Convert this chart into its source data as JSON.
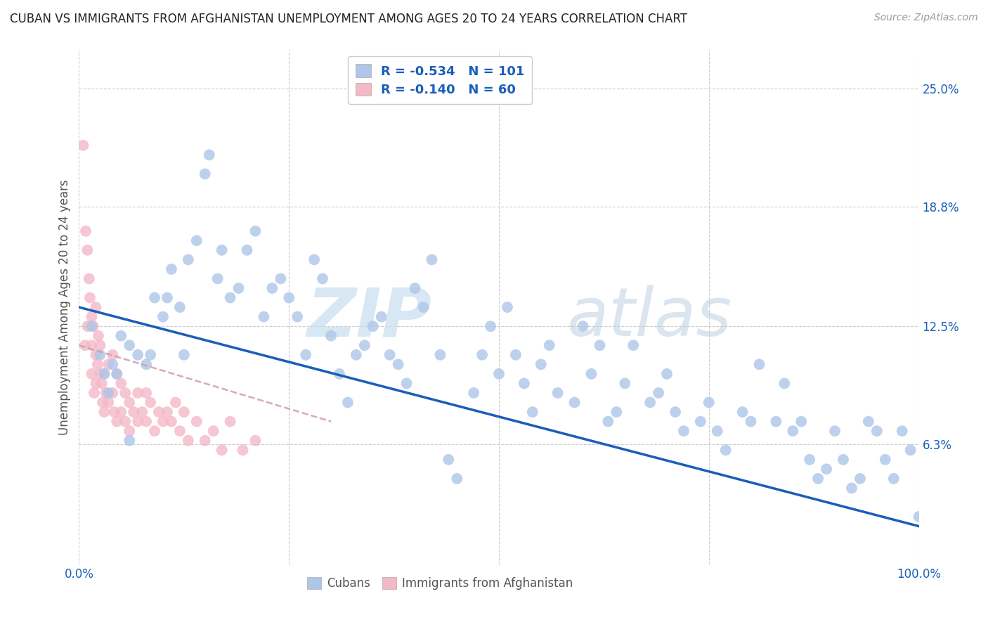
{
  "title": "CUBAN VS IMMIGRANTS FROM AFGHANISTAN UNEMPLOYMENT AMONG AGES 20 TO 24 YEARS CORRELATION CHART",
  "source": "Source: ZipAtlas.com",
  "ylabel": "Unemployment Among Ages 20 to 24 years",
  "ytick_values": [
    6.3,
    12.5,
    18.8,
    25.0
  ],
  "xlim": [
    0,
    100
  ],
  "ylim": [
    0,
    27
  ],
  "color_cubans": "#aec6e8",
  "color_afghanistan": "#f4b8c8",
  "color_line_cubans": "#1a5eb8",
  "color_line_afghanistan": "#d4a0b0",
  "watermark_zip": "ZIP",
  "watermark_atlas": "atlas",
  "cub_line_x": [
    0,
    100
  ],
  "cub_line_y": [
    13.5,
    2.0
  ],
  "afg_line_x": [
    0,
    30
  ],
  "afg_line_y": [
    11.5,
    7.5
  ],
  "cubans_x": [
    1.5,
    2.5,
    3.0,
    4.0,
    5.0,
    6.0,
    7.0,
    8.0,
    9.0,
    10.0,
    11.0,
    12.0,
    13.0,
    14.0,
    15.0,
    15.5,
    16.5,
    17.0,
    18.0,
    19.0,
    20.0,
    21.0,
    22.0,
    23.0,
    24.0,
    25.0,
    26.0,
    27.0,
    28.0,
    29.0,
    30.0,
    31.0,
    32.0,
    33.0,
    34.0,
    35.0,
    36.0,
    37.0,
    38.0,
    39.0,
    40.0,
    41.0,
    42.0,
    43.0,
    44.0,
    45.0,
    47.0,
    48.0,
    49.0,
    50.0,
    51.0,
    52.0,
    53.0,
    54.0,
    55.0,
    56.0,
    57.0,
    59.0,
    60.0,
    61.0,
    62.0,
    63.0,
    64.0,
    65.0,
    66.0,
    68.0,
    69.0,
    70.0,
    71.0,
    72.0,
    74.0,
    75.0,
    76.0,
    77.0,
    79.0,
    80.0,
    81.0,
    83.0,
    84.0,
    85.0,
    86.0,
    87.0,
    88.0,
    89.0,
    90.0,
    91.0,
    92.0,
    93.0,
    94.0,
    95.0,
    96.0,
    97.0,
    98.0,
    99.0,
    100.0,
    6.0,
    8.5,
    10.5,
    12.5,
    3.5,
    4.5
  ],
  "cubans_y": [
    12.5,
    11.0,
    10.0,
    10.5,
    12.0,
    11.5,
    11.0,
    10.5,
    14.0,
    13.0,
    15.5,
    13.5,
    16.0,
    17.0,
    20.5,
    21.5,
    15.0,
    16.5,
    14.0,
    14.5,
    16.5,
    17.5,
    13.0,
    14.5,
    15.0,
    14.0,
    13.0,
    11.0,
    16.0,
    15.0,
    12.0,
    10.0,
    8.5,
    11.0,
    11.5,
    12.5,
    13.0,
    11.0,
    10.5,
    9.5,
    14.5,
    13.5,
    16.0,
    11.0,
    5.5,
    4.5,
    9.0,
    11.0,
    12.5,
    10.0,
    13.5,
    11.0,
    9.5,
    8.0,
    10.5,
    11.5,
    9.0,
    8.5,
    12.5,
    10.0,
    11.5,
    7.5,
    8.0,
    9.5,
    11.5,
    8.5,
    9.0,
    10.0,
    8.0,
    7.0,
    7.5,
    8.5,
    7.0,
    6.0,
    8.0,
    7.5,
    10.5,
    7.5,
    9.5,
    7.0,
    7.5,
    5.5,
    4.5,
    5.0,
    7.0,
    5.5,
    4.0,
    4.5,
    7.5,
    7.0,
    5.5,
    4.5,
    7.0,
    6.0,
    2.5,
    6.5,
    11.0,
    14.0,
    11.0,
    9.0,
    10.0
  ],
  "afghanistan_x": [
    0.5,
    0.7,
    0.8,
    1.0,
    1.0,
    1.2,
    1.3,
    1.5,
    1.5,
    1.5,
    1.7,
    1.8,
    2.0,
    2.0,
    2.0,
    2.2,
    2.3,
    2.5,
    2.5,
    2.7,
    2.8,
    3.0,
    3.0,
    3.2,
    3.5,
    3.5,
    4.0,
    4.0,
    4.2,
    4.5,
    4.5,
    5.0,
    5.0,
    5.5,
    5.5,
    6.0,
    6.0,
    6.5,
    7.0,
    7.0,
    7.5,
    8.0,
    8.0,
    8.5,
    9.0,
    9.5,
    10.0,
    10.5,
    11.0,
    11.5,
    12.0,
    12.5,
    13.0,
    14.0,
    15.0,
    16.0,
    17.0,
    18.0,
    19.5,
    21.0
  ],
  "afghanistan_y": [
    22.0,
    11.5,
    17.5,
    16.5,
    12.5,
    15.0,
    14.0,
    13.0,
    11.5,
    10.0,
    12.5,
    9.0,
    13.5,
    11.0,
    9.5,
    10.5,
    12.0,
    10.0,
    11.5,
    9.5,
    8.5,
    10.0,
    8.0,
    9.0,
    10.5,
    8.5,
    11.0,
    9.0,
    8.0,
    10.0,
    7.5,
    9.5,
    8.0,
    9.0,
    7.5,
    8.5,
    7.0,
    8.0,
    9.0,
    7.5,
    8.0,
    7.5,
    9.0,
    8.5,
    7.0,
    8.0,
    7.5,
    8.0,
    7.5,
    8.5,
    7.0,
    8.0,
    6.5,
    7.5,
    6.5,
    7.0,
    6.0,
    7.5,
    6.0,
    6.5
  ]
}
